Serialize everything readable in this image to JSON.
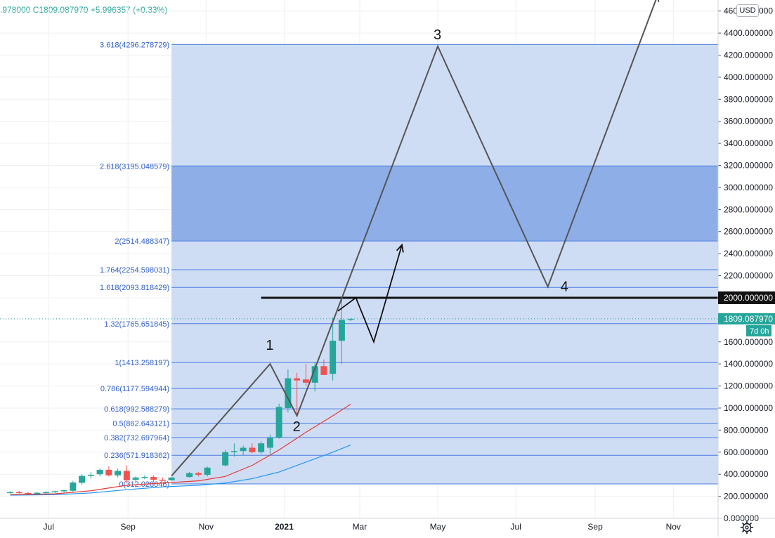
{
  "header": {
    "ohlc_text": ".978000  C1809.087970  +5.996357 (+0.33%)",
    "currency": "USD"
  },
  "price_badges": {
    "line_level": "2000.000000",
    "last_price": "1809.087970",
    "countdown": "7d 0h"
  },
  "wave_labels": [
    "1",
    "2",
    "3",
    "4"
  ],
  "icons": {
    "settings": "gear-icon"
  },
  "colors": {
    "fib_line": "#4a7de0",
    "fib_label": "#2f5fc8",
    "fib_fill": "#cfddf4",
    "fib_fill_dark": "#8eaee8",
    "up_candle": "#26a69a",
    "down_candle": "#ef5350",
    "ma_fast": "#e53935",
    "ma_slow": "#2196f3",
    "wave_line": "#555555",
    "grid": "#eef0f3"
  },
  "chart_data": {
    "type": "candlestick",
    "title": "",
    "currency": "USD",
    "ylim": [
      0,
      4700
    ],
    "y_ticks": [
      0,
      200,
      400,
      600,
      800,
      1000,
      1200,
      1400,
      1600,
      1800,
      2000,
      2200,
      2400,
      2600,
      2800,
      3000,
      3200,
      3400,
      3600,
      3800,
      4000,
      4200,
      4400,
      4600
    ],
    "y_tick_labels": [
      "0.000000",
      "200.000000",
      "400.000000",
      "600.000000",
      "800.000000",
      "1000.000000",
      "1200.000000",
      "1400.000000",
      "1600.000000",
      "1800.000000",
      "2000.000000",
      "2200.000000",
      "2400.000000",
      "2600.000000",
      "2800.000000",
      "3000.000000",
      "3200.000000",
      "3400.000000",
      "3600.000000",
      "3800.000000",
      "4000.000000",
      "4200.000000",
      "4400.000000",
      "4600.000000"
    ],
    "x_ticks": [
      {
        "date": "2020-07-01",
        "label": "Jul",
        "bold": false
      },
      {
        "date": "2020-09-01",
        "label": "Sep",
        "bold": false
      },
      {
        "date": "2020-11-01",
        "label": "Nov",
        "bold": false
      },
      {
        "date": "2021-01-01",
        "label": "2021",
        "bold": true
      },
      {
        "date": "2021-03-01",
        "label": "Mar",
        "bold": false
      },
      {
        "date": "2021-05-01",
        "label": "May",
        "bold": false
      },
      {
        "date": "2021-07-01",
        "label": "Jul",
        "bold": false
      },
      {
        "date": "2021-09-01",
        "label": "Sep",
        "bold": false
      },
      {
        "date": "2021-11-01",
        "label": "Nov",
        "bold": false
      }
    ],
    "x_range": [
      "2020-05-24",
      "2021-12-06"
    ],
    "candles": [
      {
        "date": "2020-06-01",
        "o": 235,
        "h": 245,
        "l": 225,
        "c": 238
      },
      {
        "date": "2020-06-08",
        "o": 238,
        "h": 250,
        "l": 225,
        "c": 230
      },
      {
        "date": "2020-06-15",
        "o": 230,
        "h": 240,
        "l": 220,
        "c": 228
      },
      {
        "date": "2020-06-22",
        "o": 228,
        "h": 240,
        "l": 218,
        "c": 232
      },
      {
        "date": "2020-06-29",
        "o": 232,
        "h": 245,
        "l": 225,
        "c": 238
      },
      {
        "date": "2020-07-06",
        "o": 238,
        "h": 250,
        "l": 230,
        "c": 245
      },
      {
        "date": "2020-07-13",
        "o": 245,
        "h": 260,
        "l": 238,
        "c": 255
      },
      {
        "date": "2020-07-20",
        "o": 250,
        "h": 340,
        "l": 240,
        "c": 325
      },
      {
        "date": "2020-07-27",
        "o": 322,
        "h": 400,
        "l": 305,
        "c": 385
      },
      {
        "date": "2020-08-03",
        "o": 385,
        "h": 420,
        "l": 360,
        "c": 395
      },
      {
        "date": "2020-08-10",
        "o": 400,
        "h": 450,
        "l": 380,
        "c": 440
      },
      {
        "date": "2020-08-17",
        "o": 440,
        "h": 470,
        "l": 380,
        "c": 390
      },
      {
        "date": "2020-08-24",
        "o": 390,
        "h": 450,
        "l": 370,
        "c": 430
      },
      {
        "date": "2020-08-31",
        "o": 430,
        "h": 480,
        "l": 320,
        "c": 345
      },
      {
        "date": "2020-09-07",
        "o": 350,
        "h": 380,
        "l": 330,
        "c": 370
      },
      {
        "date": "2020-09-14",
        "o": 370,
        "h": 390,
        "l": 355,
        "c": 375
      },
      {
        "date": "2020-09-21",
        "o": 375,
        "h": 390,
        "l": 330,
        "c": 350
      },
      {
        "date": "2020-09-28",
        "o": 350,
        "h": 370,
        "l": 335,
        "c": 345
      },
      {
        "date": "2020-10-05",
        "o": 345,
        "h": 375,
        "l": 340,
        "c": 370
      },
      {
        "date": "2020-10-19",
        "o": 375,
        "h": 420,
        "l": 370,
        "c": 410
      },
      {
        "date": "2020-10-26",
        "o": 410,
        "h": 420,
        "l": 380,
        "c": 395
      },
      {
        "date": "2020-11-02",
        "o": 395,
        "h": 470,
        "l": 380,
        "c": 460
      },
      {
        "date": "2020-11-16",
        "o": 480,
        "h": 620,
        "l": 470,
        "c": 600
      },
      {
        "date": "2020-11-23",
        "o": 600,
        "h": 680,
        "l": 560,
        "c": 610
      },
      {
        "date": "2020-11-30",
        "o": 610,
        "h": 660,
        "l": 570,
        "c": 640
      },
      {
        "date": "2020-12-07",
        "o": 640,
        "h": 680,
        "l": 590,
        "c": 600
      },
      {
        "date": "2020-12-14",
        "o": 600,
        "h": 700,
        "l": 580,
        "c": 680
      },
      {
        "date": "2020-12-21",
        "o": 640,
        "h": 760,
        "l": 580,
        "c": 730
      },
      {
        "date": "2020-12-28",
        "o": 730,
        "h": 1040,
        "l": 720,
        "c": 1010
      },
      {
        "date": "2021-01-04",
        "o": 1000,
        "h": 1350,
        "l": 960,
        "c": 1270
      },
      {
        "date": "2021-01-11",
        "o": 1270,
        "h": 1320,
        "l": 920,
        "c": 1250
      },
      {
        "date": "2021-01-18",
        "o": 1260,
        "h": 1400,
        "l": 1200,
        "c": 1230
      },
      {
        "date": "2021-01-25",
        "o": 1230,
        "h": 1420,
        "l": 1150,
        "c": 1380
      },
      {
        "date": "2021-02-01",
        "o": 1380,
        "h": 1440,
        "l": 1300,
        "c": 1300
      },
      {
        "date": "2021-02-08",
        "o": 1310,
        "h": 1820,
        "l": 1250,
        "c": 1610
      },
      {
        "date": "2021-02-15",
        "o": 1610,
        "h": 2000,
        "l": 1400,
        "c": 1800
      },
      {
        "date": "2021-02-22",
        "o": 1800,
        "h": 1815,
        "l": 1790,
        "c": 1809.09
      }
    ],
    "ma_fast": [
      [
        "2020-06-01",
        215
      ],
      [
        "2020-07-06",
        222
      ],
      [
        "2020-08-03",
        250
      ],
      [
        "2020-08-31",
        300
      ],
      [
        "2020-09-28",
        320
      ],
      [
        "2020-10-26",
        340
      ],
      [
        "2020-11-16",
        380
      ],
      [
        "2020-12-07",
        480
      ],
      [
        "2020-12-28",
        620
      ],
      [
        "2021-01-18",
        780
      ],
      [
        "2021-02-08",
        930
      ],
      [
        "2021-02-22",
        1035
      ]
    ],
    "ma_slow": [
      [
        "2020-06-01",
        210
      ],
      [
        "2020-07-06",
        215
      ],
      [
        "2020-08-03",
        230
      ],
      [
        "2020-08-31",
        260
      ],
      [
        "2020-09-28",
        285
      ],
      [
        "2020-10-26",
        300
      ],
      [
        "2020-11-16",
        320
      ],
      [
        "2020-12-07",
        360
      ],
      [
        "2020-12-28",
        420
      ],
      [
        "2021-01-18",
        510
      ],
      [
        "2021-02-08",
        600
      ],
      [
        "2021-02-22",
        665
      ]
    ],
    "fib_levels": [
      {
        "ratio": "0",
        "value": 312.028046,
        "label": "0(312.028046)"
      },
      {
        "ratio": "0.236",
        "value": 571.918362,
        "label": "0.236(571.918362)"
      },
      {
        "ratio": "0.382",
        "value": 732.697964,
        "label": "0.382(732.697964)"
      },
      {
        "ratio": "0.5",
        "value": 862.643121,
        "label": "0.5(862.643121)"
      },
      {
        "ratio": "0.618",
        "value": 992.588279,
        "label": "0.618(992.588279)"
      },
      {
        "ratio": "0.786",
        "value": 1177.594944,
        "label": "0.786(1177.594944)"
      },
      {
        "ratio": "1",
        "value": 1413.258197,
        "label": "1(1413.258197)"
      },
      {
        "ratio": "1.32",
        "value": 1765.651845,
        "label": "1.32(1765.651845)"
      },
      {
        "ratio": "1.618",
        "value": 2093.818429,
        "label": "1.618(2093.818429)"
      },
      {
        "ratio": "1.764",
        "value": 2254.598031,
        "label": "1.764(2254.598031)"
      },
      {
        "ratio": "2",
        "value": 2514.488347,
        "label": "2(2514.488347)"
      },
      {
        "ratio": "2.618",
        "value": 3195.048579,
        "label": "2.618(3195.048579)"
      },
      {
        "ratio": "3.618",
        "value": 4296.278729,
        "label": "3.618(4296.278729)"
      }
    ],
    "fib_range": {
      "start": "2020-10-05",
      "end": "2021-12-06"
    },
    "highlight_zone": [
      2514.488347,
      3195.048579
    ],
    "horizontal_line": {
      "value": 2000,
      "start": "2020-12-14",
      "end": "2021-12-06"
    },
    "last_price": 1809.08797,
    "wave_path": [
      [
        "2020-10-05",
        385
      ],
      [
        "2020-12-21",
        1400
      ],
      [
        "2021-01-11",
        930
      ],
      [
        "2021-05-01",
        4280
      ],
      [
        "2021-07-26",
        2100
      ],
      [
        "2021-10-20",
        4750
      ]
    ],
    "wave_points": [
      {
        "label": "1",
        "date": "2020-12-21",
        "value": 1400
      },
      {
        "label": "2",
        "date": "2021-01-11",
        "value": 930
      },
      {
        "label": "3",
        "date": "2021-05-01",
        "value": 4280
      },
      {
        "label": "4",
        "date": "2021-07-26",
        "value": 2100
      }
    ],
    "alt_path": [
      [
        "2021-02-12",
        1880
      ],
      [
        "2021-02-26",
        2000
      ],
      [
        "2021-03-12",
        1600
      ],
      [
        "2021-04-03",
        2480
      ]
    ],
    "arrow_tail": [
      [
        "2021-02-22",
        2000
      ],
      [
        "2021-03-12",
        1420
      ],
      [
        "2021-04-03",
        2480
      ]
    ]
  }
}
